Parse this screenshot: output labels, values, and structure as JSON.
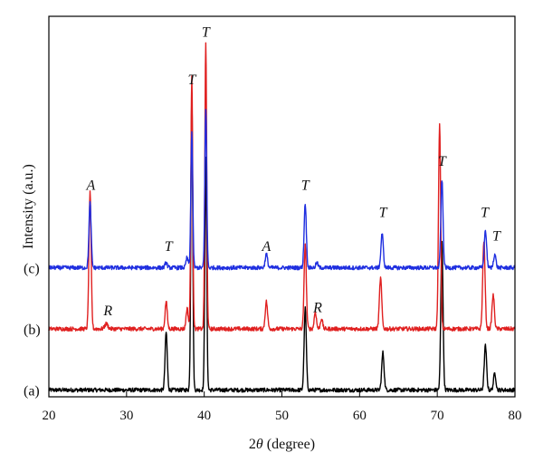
{
  "chart_data": {
    "type": "line",
    "xlabel_parts": [
      "2",
      "θ",
      " (degree)"
    ],
    "ylabel": "Intensity (a.u.)",
    "xlim": [
      20,
      80
    ],
    "x_ticks": [
      20,
      30,
      40,
      50,
      60,
      70,
      80
    ],
    "y_ticks": false,
    "y_display_range": [
      -0.2,
      11.0
    ],
    "grid": false,
    "background_noise": 0.06,
    "series": [
      {
        "name": "(a)",
        "color": "#000000",
        "baseline": 0,
        "peaks": [
          {
            "x": 35.1,
            "height": 1.7,
            "width": 0.14
          },
          {
            "x": 38.4,
            "height": 8.8,
            "width": 0.12
          },
          {
            "x": 40.2,
            "height": 6.8,
            "width": 0.12
          },
          {
            "x": 53.0,
            "height": 2.4,
            "width": 0.14
          },
          {
            "x": 63.0,
            "height": 1.1,
            "width": 0.15
          },
          {
            "x": 70.6,
            "height": 4.4,
            "width": 0.14
          },
          {
            "x": 76.2,
            "height": 1.3,
            "width": 0.15
          },
          {
            "x": 77.4,
            "height": 0.5,
            "width": 0.15
          }
        ]
      },
      {
        "name": "(b)",
        "color": "#e02020",
        "baseline": 1.8,
        "peaks": [
          {
            "x": 25.3,
            "height": 4.0,
            "width": 0.14
          },
          {
            "x": 27.4,
            "height": 0.15,
            "width": 0.2
          },
          {
            "x": 35.1,
            "height": 0.8,
            "width": 0.14
          },
          {
            "x": 37.8,
            "height": 0.6,
            "width": 0.14
          },
          {
            "x": 38.4,
            "height": 7.4,
            "width": 0.12
          },
          {
            "x": 40.2,
            "height": 8.4,
            "width": 0.12
          },
          {
            "x": 48.0,
            "height": 0.8,
            "width": 0.15
          },
          {
            "x": 53.0,
            "height": 2.5,
            "width": 0.14
          },
          {
            "x": 54.3,
            "height": 0.5,
            "width": 0.14
          },
          {
            "x": 55.1,
            "height": 0.3,
            "width": 0.14
          },
          {
            "x": 62.7,
            "height": 1.5,
            "width": 0.15
          },
          {
            "x": 70.3,
            "height": 6.0,
            "width": 0.14
          },
          {
            "x": 76.0,
            "height": 2.6,
            "width": 0.15
          },
          {
            "x": 77.2,
            "height": 1.0,
            "width": 0.15
          }
        ]
      },
      {
        "name": "(c)",
        "color": "#1f2fe0",
        "baseline": 3.6,
        "peaks": [
          {
            "x": 25.3,
            "height": 1.9,
            "width": 0.14
          },
          {
            "x": 35.1,
            "height": 0.15,
            "width": 0.14
          },
          {
            "x": 37.8,
            "height": 0.3,
            "width": 0.14
          },
          {
            "x": 38.4,
            "height": 4.0,
            "width": 0.12
          },
          {
            "x": 40.2,
            "height": 4.7,
            "width": 0.12
          },
          {
            "x": 48.0,
            "height": 0.4,
            "width": 0.15
          },
          {
            "x": 53.0,
            "height": 1.9,
            "width": 0.14
          },
          {
            "x": 54.5,
            "height": 0.15,
            "width": 0.14
          },
          {
            "x": 62.9,
            "height": 1.0,
            "width": 0.15
          },
          {
            "x": 70.6,
            "height": 2.6,
            "width": 0.14
          },
          {
            "x": 76.2,
            "height": 1.1,
            "width": 0.15
          },
          {
            "x": 77.4,
            "height": 0.4,
            "width": 0.15
          }
        ]
      }
    ],
    "annotations": [
      {
        "text": "A",
        "x": 25.4,
        "y": 5.9
      },
      {
        "text": "T",
        "x": 35.4,
        "y": 4.1
      },
      {
        "text": "T",
        "x": 38.4,
        "y": 9.0
      },
      {
        "text": "T",
        "x": 40.2,
        "y": 10.4
      },
      {
        "text": "A",
        "x": 48.0,
        "y": 4.1
      },
      {
        "text": "T",
        "x": 53.0,
        "y": 5.9
      },
      {
        "text": "T",
        "x": 63.0,
        "y": 5.1
      },
      {
        "text": "T",
        "x": 70.6,
        "y": 6.6
      },
      {
        "text": "T",
        "x": 76.1,
        "y": 5.1
      },
      {
        "text": "T",
        "x": 77.6,
        "y": 4.4
      },
      {
        "text": "R",
        "x": 27.6,
        "y": 2.2
      },
      {
        "text": "R",
        "x": 54.6,
        "y": 2.3
      }
    ]
  }
}
